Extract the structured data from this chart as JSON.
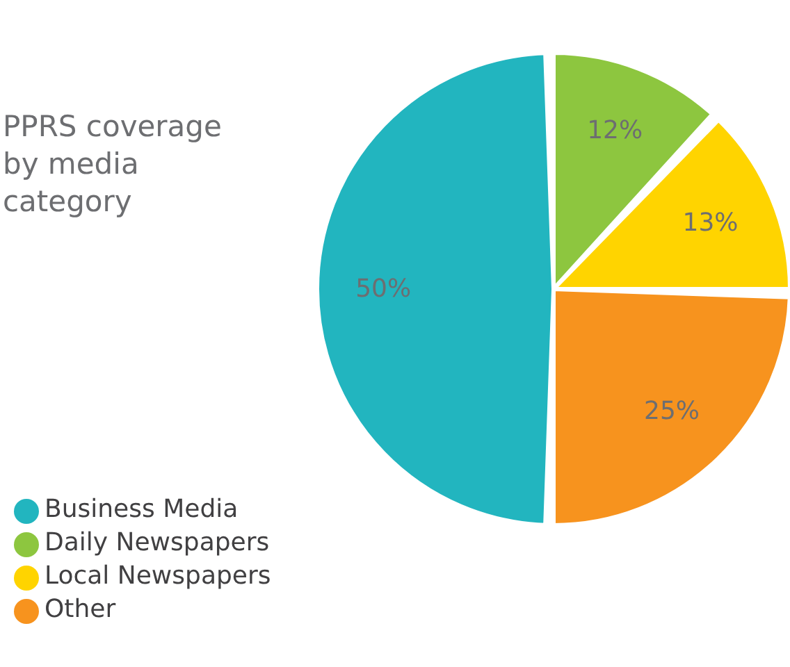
{
  "chart_data": {
    "type": "pie",
    "title": "PPRS coverage by media category",
    "categories": [
      "Daily Newspapers",
      "Local Newspapers",
      "Other",
      "Business Media"
    ],
    "values": [
      12,
      13,
      25,
      50
    ],
    "colors": [
      "#8dc63f",
      "#ffd400",
      "#f7931e",
      "#22b5bf"
    ],
    "value_labels": [
      "12%",
      "13%",
      "25%",
      "50%"
    ],
    "legend": "bottom left"
  }
}
